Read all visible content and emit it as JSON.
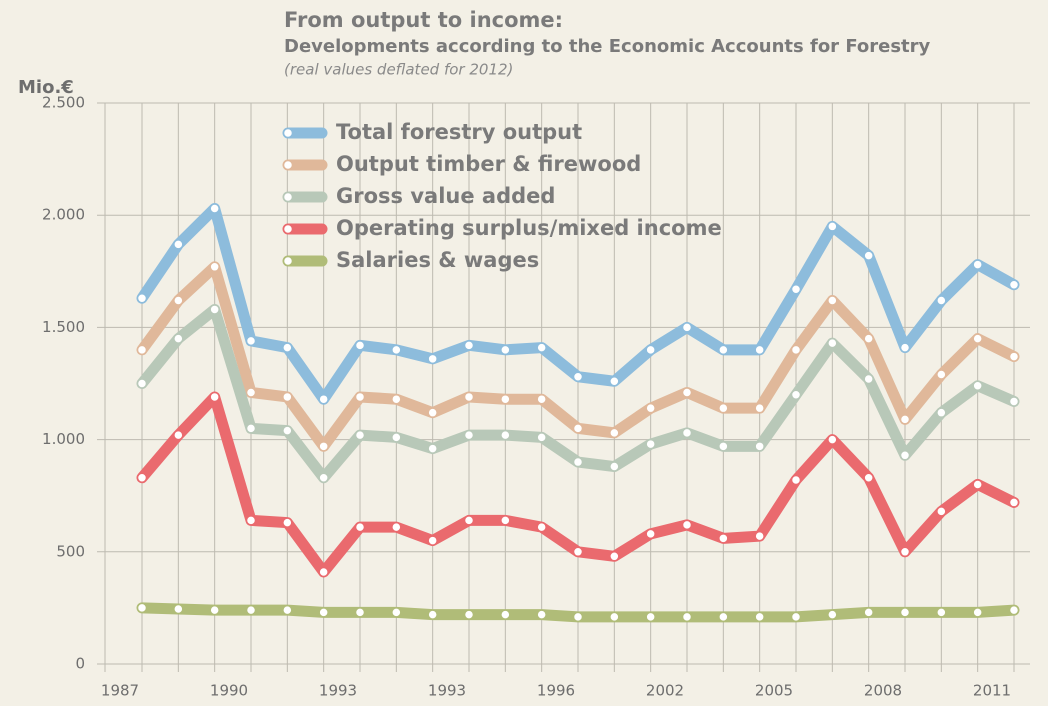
{
  "chart_data": {
    "type": "line",
    "title": "From output to income:",
    "subtitle": "Developments according to the Economic Accounts for Forestry",
    "note": "(real values deflated for 2012)",
    "y_label": "Mio.€",
    "categories": [
      "1987",
      null,
      null,
      "1990",
      null,
      null,
      "1993",
      null,
      null,
      "1993",
      null,
      null,
      "1996",
      null,
      null,
      "2002",
      null,
      null,
      "2005",
      null,
      null,
      "2008",
      null,
      null,
      "2011"
    ],
    "series": [
      {
        "name": "Total forestry output",
        "color": "#8dbcdc",
        "values": [
          1630,
          1870,
          2030,
          1440,
          1410,
          1180,
          1420,
          1400,
          1360,
          1420,
          1400,
          1410,
          1280,
          1260,
          1400,
          1500,
          1400,
          1400,
          1670,
          1950,
          1820,
          1410,
          1620,
          1780,
          1690
        ]
      },
      {
        "name": "Output timber & firewood",
        "color": "#e0b89a",
        "values": [
          1400,
          1620,
          1770,
          1210,
          1190,
          970,
          1190,
          1180,
          1120,
          1190,
          1180,
          1180,
          1050,
          1030,
          1140,
          1210,
          1140,
          1140,
          1400,
          1620,
          1450,
          1090,
          1290,
          1450,
          1370
        ]
      },
      {
        "name": "Gross value added",
        "color": "#b8c8b8",
        "values": [
          1250,
          1450,
          1580,
          1050,
          1040,
          830,
          1020,
          1010,
          960,
          1020,
          1020,
          1010,
          900,
          880,
          980,
          1030,
          970,
          970,
          1200,
          1430,
          1270,
          930,
          1120,
          1240,
          1170
        ]
      },
      {
        "name": "Operating surplus/mixed income",
        "color": "#ea6a6e",
        "values": [
          830,
          1020,
          1190,
          640,
          630,
          410,
          610,
          610,
          550,
          640,
          640,
          610,
          500,
          480,
          580,
          620,
          560,
          570,
          820,
          1000,
          830,
          500,
          680,
          800,
          720
        ]
      },
      {
        "name": "Salaries & wages",
        "color": "#b0bc78",
        "values": [
          250,
          245,
          240,
          240,
          240,
          230,
          230,
          230,
          220,
          220,
          220,
          220,
          210,
          210,
          210,
          210,
          210,
          210,
          210,
          220,
          230,
          230,
          230,
          230,
          240
        ]
      }
    ],
    "ylim": [
      0,
      2500
    ],
    "yticks": [
      0,
      500,
      {
        "value": 1000,
        "label": "1.000"
      },
      {
        "value": 1500,
        "label": "1.500"
      },
      {
        "value": 2000,
        "label": "2.000"
      },
      {
        "value": 2500,
        "label": "2.500"
      }
    ],
    "grid": true
  }
}
